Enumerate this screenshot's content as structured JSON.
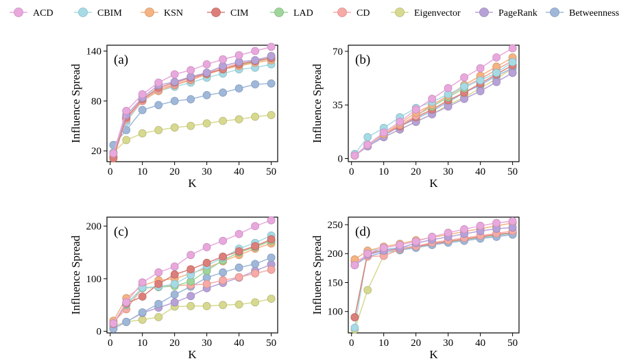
{
  "legend": [
    {
      "name": "ACD",
      "color": "#e9a8dd"
    },
    {
      "name": "CBIM",
      "color": "#a6dbe6"
    },
    {
      "name": "KSN",
      "color": "#f5b382"
    },
    {
      "name": "CIM",
      "color": "#dc7f7a"
    },
    {
      "name": "LAD",
      "color": "#9fd59a"
    },
    {
      "name": "CD",
      "color": "#f7aaa6"
    },
    {
      "name": "Eigenvector",
      "color": "#d7d98f"
    },
    {
      "name": "PageRank",
      "color": "#b7a2d8"
    },
    {
      "name": "Betweenness",
      "color": "#9fb8da"
    }
  ],
  "chart_data": [
    {
      "type": "line",
      "panel": "(a)",
      "xlabel": "K",
      "ylabel": "Influence Spread",
      "xlim": [
        -1,
        52
      ],
      "ylim": [
        7,
        147
      ],
      "xticks": [
        0,
        10,
        20,
        30,
        40,
        50
      ],
      "yticks": [
        20,
        80,
        140
      ],
      "x": [
        1,
        5,
        10,
        15,
        20,
        25,
        30,
        35,
        40,
        45,
        50
      ],
      "series": [
        {
          "name": "Betweenness",
          "values": [
            27,
            45,
            69,
            75,
            80,
            82,
            87,
            90,
            95,
            100,
            101
          ]
        },
        {
          "name": "Eigenvector",
          "values": [
            18,
            33,
            41,
            45,
            48,
            50,
            53,
            56,
            58,
            61,
            63
          ]
        },
        {
          "name": "CBIM",
          "values": [
            18,
            55,
            80,
            92,
            97,
            102,
            108,
            113,
            118,
            120,
            124
          ]
        },
        {
          "name": "LAD",
          "values": [
            13,
            60,
            82,
            94,
            100,
            106,
            112,
            118,
            123,
            127,
            131
          ]
        },
        {
          "name": "KSN",
          "values": [
            13,
            58,
            80,
            92,
            99,
            105,
            112,
            118,
            122,
            126,
            129
          ]
        },
        {
          "name": "CD",
          "values": [
            13,
            58,
            80,
            94,
            100,
            106,
            113,
            120,
            125,
            128,
            131
          ]
        },
        {
          "name": "CIM",
          "values": [
            11,
            60,
            82,
            96,
            102,
            108,
            113,
            118,
            124,
            128,
            132
          ]
        },
        {
          "name": "PageRank",
          "values": [
            17,
            63,
            84,
            99,
            103,
            109,
            114,
            122,
            127,
            129,
            134
          ]
        },
        {
          "name": "ACD",
          "values": [
            17,
            68,
            88,
            102,
            112,
            117,
            124,
            130,
            135,
            140,
            145
          ]
        }
      ]
    },
    {
      "type": "line",
      "panel": "(b)",
      "xlabel": "K",
      "ylabel": "Influence Spread",
      "xlim": [
        -1,
        52
      ],
      "ylim": [
        -2,
        74
      ],
      "xticks": [
        0,
        10,
        20,
        30,
        40,
        50
      ],
      "yticks": [
        0,
        35,
        70
      ],
      "x": [
        1,
        5,
        10,
        15,
        20,
        25,
        30,
        35,
        40,
        45,
        50
      ],
      "series": [
        {
          "name": "Eigenvector",
          "values": [
            2,
            8,
            14,
            19,
            24,
            29,
            35,
            40,
            46,
            52,
            59
          ]
        },
        {
          "name": "Betweenness",
          "values": [
            2,
            8,
            15,
            21,
            26,
            31,
            37,
            43,
            48,
            54,
            59
          ]
        },
        {
          "name": "PageRank",
          "values": [
            2,
            8,
            14,
            19,
            24,
            29,
            34,
            39,
            44,
            50,
            56
          ]
        },
        {
          "name": "CIM",
          "values": [
            2,
            9,
            16,
            21,
            27,
            32,
            38,
            43,
            49,
            55,
            61
          ]
        },
        {
          "name": "LAD",
          "values": [
            2,
            9,
            16,
            22,
            28,
            34,
            40,
            46,
            52,
            58,
            64
          ]
        },
        {
          "name": "CD",
          "values": [
            2,
            9,
            16,
            22,
            28,
            35,
            41,
            47,
            52,
            58,
            64
          ]
        },
        {
          "name": "KSN",
          "values": [
            2,
            9,
            16,
            23,
            30,
            35,
            41,
            48,
            54,
            60,
            66
          ]
        },
        {
          "name": "CBIM",
          "values": [
            3,
            14,
            20,
            27,
            33,
            37,
            42,
            47,
            51,
            56,
            63
          ]
        },
        {
          "name": "ACD",
          "values": [
            2,
            9,
            17,
            24,
            32,
            39,
            46,
            53,
            59,
            66,
            72
          ]
        }
      ]
    },
    {
      "type": "line",
      "panel": "(c)",
      "xlabel": "K",
      "ylabel": "Influence Spread",
      "xlim": [
        -1,
        52
      ],
      "ylim": [
        -3,
        217
      ],
      "xticks": [
        0,
        10,
        20,
        30,
        40,
        50
      ],
      "yticks": [
        0,
        100,
        200
      ],
      "x": [
        1,
        5,
        10,
        15,
        20,
        25,
        30,
        35,
        40,
        45,
        50
      ],
      "series": [
        {
          "name": "Eigenvector",
          "values": [
            10,
            18,
            22,
            27,
            47,
            48,
            48,
            50,
            51,
            55,
            62
          ]
        },
        {
          "name": "PageRank",
          "values": [
            5,
            18,
            35,
            45,
            55,
            67,
            82,
            92,
            102,
            115,
            127
          ]
        },
        {
          "name": "Betweenness",
          "values": [
            5,
            18,
            36,
            52,
            70,
            85,
            102,
            112,
            121,
            128,
            140
          ]
        },
        {
          "name": "CD",
          "values": [
            18,
            42,
            82,
            85,
            87,
            88,
            90,
            97,
            103,
            110,
            117
          ]
        },
        {
          "name": "KSN",
          "values": [
            20,
            63,
            87,
            97,
            100,
            110,
            120,
            133,
            145,
            157,
            167
          ]
        },
        {
          "name": "LAD",
          "values": [
            15,
            50,
            82,
            84,
            86,
            95,
            115,
            135,
            150,
            160,
            172
          ]
        },
        {
          "name": "CBIM",
          "values": [
            15,
            52,
            83,
            85,
            90,
            107,
            125,
            140,
            157,
            168,
            182
          ]
        },
        {
          "name": "CIM",
          "values": [
            14,
            53,
            66,
            90,
            108,
            118,
            130,
            142,
            152,
            162,
            175
          ]
        },
        {
          "name": "ACD",
          "values": [
            15,
            55,
            93,
            112,
            123,
            145,
            160,
            172,
            185,
            200,
            211
          ]
        }
      ]
    },
    {
      "type": "line",
      "panel": "(d)",
      "xlabel": "K",
      "ylabel": "Influence Spread",
      "xlim": [
        -1,
        52
      ],
      "ylim": [
        63,
        263
      ],
      "xticks": [
        0,
        10,
        20,
        30,
        40,
        50
      ],
      "yticks": [
        100,
        150,
        200,
        250
      ],
      "x": [
        1,
        5,
        10,
        15,
        20,
        25,
        30,
        35,
        40,
        45,
        50
      ],
      "series": [
        {
          "name": "Eigenvector",
          "values": [
            69,
            137,
            197,
            206,
            211,
            215,
            220,
            223,
            227,
            230,
            233
          ]
        },
        {
          "name": "CBIM",
          "values": [
            72,
            205,
            208,
            210,
            213,
            217,
            221,
            224,
            228,
            231,
            234
          ]
        },
        {
          "name": "LAD",
          "values": [
            90,
            202,
            205,
            208,
            212,
            217,
            221,
            224,
            228,
            232,
            236
          ]
        },
        {
          "name": "CIM",
          "values": [
            90,
            200,
            205,
            208,
            212,
            217,
            221,
            225,
            229,
            233,
            236
          ]
        },
        {
          "name": "Betweenness",
          "values": [
            180,
            195,
            202,
            206,
            210,
            215,
            219,
            222,
            226,
            229,
            233
          ]
        },
        {
          "name": "CD",
          "values": [
            187,
            195,
            196,
            208,
            213,
            219,
            223,
            227,
            231,
            235,
            239
          ]
        },
        {
          "name": "KSN",
          "values": [
            190,
            205,
            212,
            217,
            223,
            228,
            233,
            238,
            243,
            248,
            253
          ]
        },
        {
          "name": "PageRank",
          "values": [
            180,
            198,
            205,
            210,
            218,
            224,
            229,
            234,
            239,
            243,
            245
          ]
        },
        {
          "name": "ACD",
          "values": [
            180,
            200,
            210,
            215,
            221,
            229,
            236,
            242,
            248,
            253,
            256
          ]
        }
      ]
    }
  ]
}
